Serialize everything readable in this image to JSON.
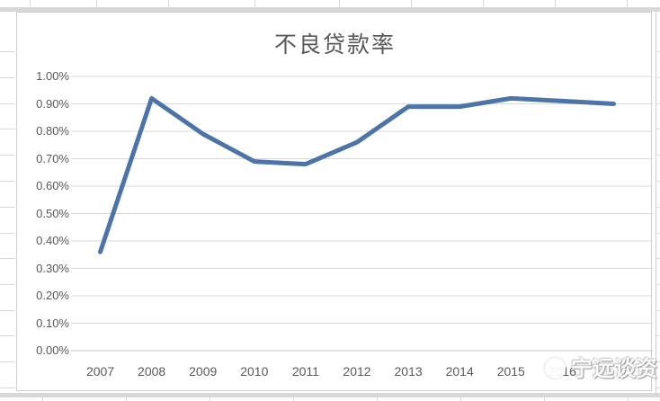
{
  "chart": {
    "title": "不良贷款率",
    "line_color": "#4d74a8",
    "grid_color": "#d9d9d9",
    "axis_line_color": "#c6c6c6",
    "text_color": "#595959",
    "frame_border_color": "#cfcfcf"
  },
  "watermark": {
    "text": "宁远谈资"
  },
  "chart_data": {
    "type": "line",
    "title": "不良贷款率",
    "categories": [
      "2007",
      "2008",
      "2009",
      "2010",
      "2011",
      "2012",
      "2013",
      "2014",
      "2015",
      "2016",
      ""
    ],
    "values": [
      0.36,
      0.92,
      0.79,
      0.69,
      0.68,
      0.76,
      0.89,
      0.89,
      0.92,
      0.91,
      0.9
    ],
    "unit": "%",
    "ylim": [
      0,
      1.0
    ],
    "y_tick_step": 0.1,
    "y_tick_labels": [
      "1.00%",
      "0.90%",
      "0.80%",
      "0.70%",
      "0.60%",
      "0.50%",
      "0.40%",
      "0.30%",
      "0.20%",
      "0.10%",
      "0.00%"
    ],
    "xlabel": "",
    "ylabel": "",
    "grid": true,
    "legend": "none",
    "series": [
      {
        "name": "不良贷款率",
        "color": "#4d74a8"
      }
    ]
  }
}
